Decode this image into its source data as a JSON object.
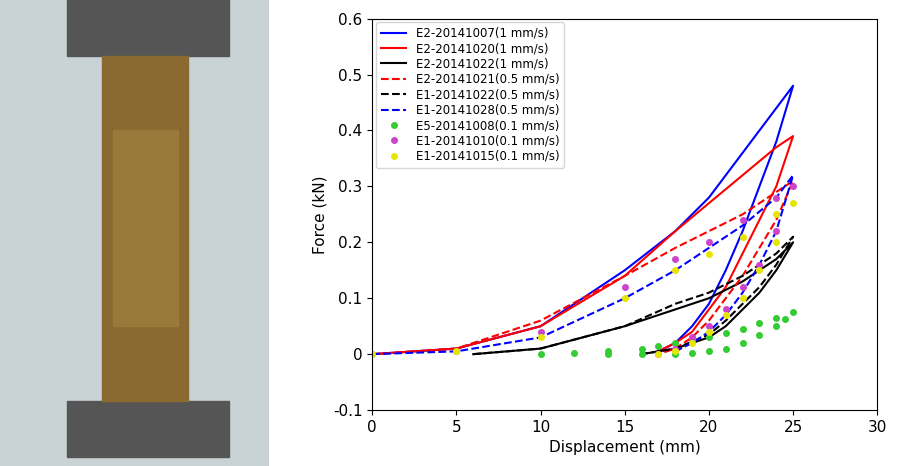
{
  "chart_data": {
    "type": "line",
    "x_label": "Displacement (mm)",
    "y_label": "Force (kN)",
    "xlim": [
      0,
      30
    ],
    "xticks": [
      0,
      5,
      10,
      15,
      20,
      25,
      30
    ],
    "ylim": [
      -0.1,
      0.6
    ],
    "yticks": [
      -0.1,
      0,
      0.1,
      0.2,
      0.3,
      0.4,
      0.5,
      0.6
    ],
    "legend": "upper left",
    "series": [
      {
        "name": "E2-20141007(1 mm/s)",
        "color": "#0000ff",
        "line_style": "solid",
        "x": [
          0,
          5,
          10,
          15,
          18,
          20,
          22,
          24,
          25,
          24,
          23,
          22,
          21,
          20,
          19,
          18,
          17
        ],
        "values": [
          0,
          0.01,
          0.05,
          0.15,
          0.22,
          0.28,
          0.36,
          0.44,
          0.48,
          0.38,
          0.3,
          0.22,
          0.15,
          0.09,
          0.05,
          0.02,
          0.005
        ]
      },
      {
        "name": "E2-20141020(1 mm/s)",
        "color": "#ff0000",
        "line_style": "solid",
        "x": [
          0,
          5,
          10,
          15,
          18,
          20,
          22,
          24,
          25,
          24,
          23,
          22,
          21,
          20,
          19,
          18,
          17
        ],
        "values": [
          0,
          0.01,
          0.05,
          0.14,
          0.22,
          0.27,
          0.32,
          0.37,
          0.39,
          0.3,
          0.24,
          0.18,
          0.12,
          0.08,
          0.04,
          0.02,
          0.005
        ]
      },
      {
        "name": "E2-20141022(1 mm/s)",
        "color": "#000000",
        "line_style": "solid",
        "x": [
          6,
          10,
          15,
          18,
          20,
          22,
          24,
          25,
          24,
          23,
          22,
          21,
          20,
          18,
          16
        ],
        "values": [
          0,
          0.01,
          0.05,
          0.08,
          0.1,
          0.13,
          0.17,
          0.2,
          0.15,
          0.11,
          0.08,
          0.05,
          0.03,
          0.01,
          0
        ]
      },
      {
        "name": "E2-20141021(0.5 mm/s)",
        "color": "#ff0000",
        "line_style": "dashed",
        "x": [
          0,
          5,
          10,
          15,
          18,
          20,
          22,
          24,
          25,
          24,
          23,
          22,
          21,
          20,
          19,
          18,
          17
        ],
        "values": [
          0,
          0.01,
          0.06,
          0.14,
          0.19,
          0.22,
          0.25,
          0.29,
          0.31,
          0.24,
          0.19,
          0.14,
          0.1,
          0.06,
          0.03,
          0.01,
          0
        ]
      },
      {
        "name": "E1-20141022(0.5 mm/s)",
        "color": "#000000",
        "line_style": "dashed",
        "x": [
          6,
          10,
          15,
          18,
          20,
          22,
          24,
          25,
          24,
          23,
          22,
          21,
          20,
          18,
          16
        ],
        "values": [
          0,
          0.01,
          0.05,
          0.09,
          0.11,
          0.14,
          0.18,
          0.21,
          0.16,
          0.12,
          0.09,
          0.06,
          0.035,
          0.01,
          0
        ]
      },
      {
        "name": "E1-20141028(0.5 mm/s)",
        "color": "#0000ff",
        "line_style": "dashed",
        "x": [
          0,
          5,
          10,
          15,
          18,
          20,
          22,
          24,
          25,
          24,
          23,
          22,
          21,
          20,
          19,
          18
        ],
        "values": [
          0,
          0.005,
          0.03,
          0.1,
          0.15,
          0.19,
          0.23,
          0.28,
          0.32,
          0.22,
          0.16,
          0.11,
          0.07,
          0.04,
          0.02,
          0.005
        ]
      },
      {
        "name": "E5-20141008(0.1 mm/s)",
        "color": "#33cc33",
        "marker": "o",
        "line_style": "none",
        "x": [
          10,
          12,
          14,
          16,
          17,
          18,
          19,
          20,
          21,
          22,
          23,
          24,
          25,
          24.5,
          24,
          23,
          22,
          21,
          20,
          19,
          18,
          16,
          14
        ],
        "values": [
          0,
          0.002,
          0.005,
          0.01,
          0.015,
          0.02,
          0.025,
          0.03,
          0.037,
          0.045,
          0.055,
          0.065,
          0.075,
          0.062,
          0.05,
          0.035,
          0.02,
          0.01,
          0.005,
          0.002,
          0,
          0,
          0
        ]
      },
      {
        "name": "E1-20141010(0.1 mm/s)",
        "color": "#cc44cc",
        "marker": "o",
        "line_style": "none",
        "x": [
          0,
          5,
          10,
          15,
          18,
          20,
          22,
          24,
          25,
          24,
          23,
          22,
          21,
          20,
          19,
          18,
          17
        ],
        "values": [
          0,
          0.005,
          0.04,
          0.12,
          0.17,
          0.2,
          0.24,
          0.28,
          0.3,
          0.22,
          0.16,
          0.12,
          0.08,
          0.05,
          0.03,
          0.01,
          0
        ]
      },
      {
        "name": "E1-20141015(0.1 mm/s)",
        "color": "#e6e600",
        "marker": "o",
        "line_style": "none",
        "x": [
          0,
          5,
          10,
          15,
          18,
          20,
          22,
          24,
          25,
          24,
          23,
          22,
          21,
          20,
          19,
          18,
          17
        ],
        "values": [
          0,
          0.005,
          0.03,
          0.1,
          0.15,
          0.18,
          0.21,
          0.25,
          0.27,
          0.2,
          0.15,
          0.1,
          0.07,
          0.04,
          0.02,
          0.005,
          0
        ]
      }
    ]
  }
}
